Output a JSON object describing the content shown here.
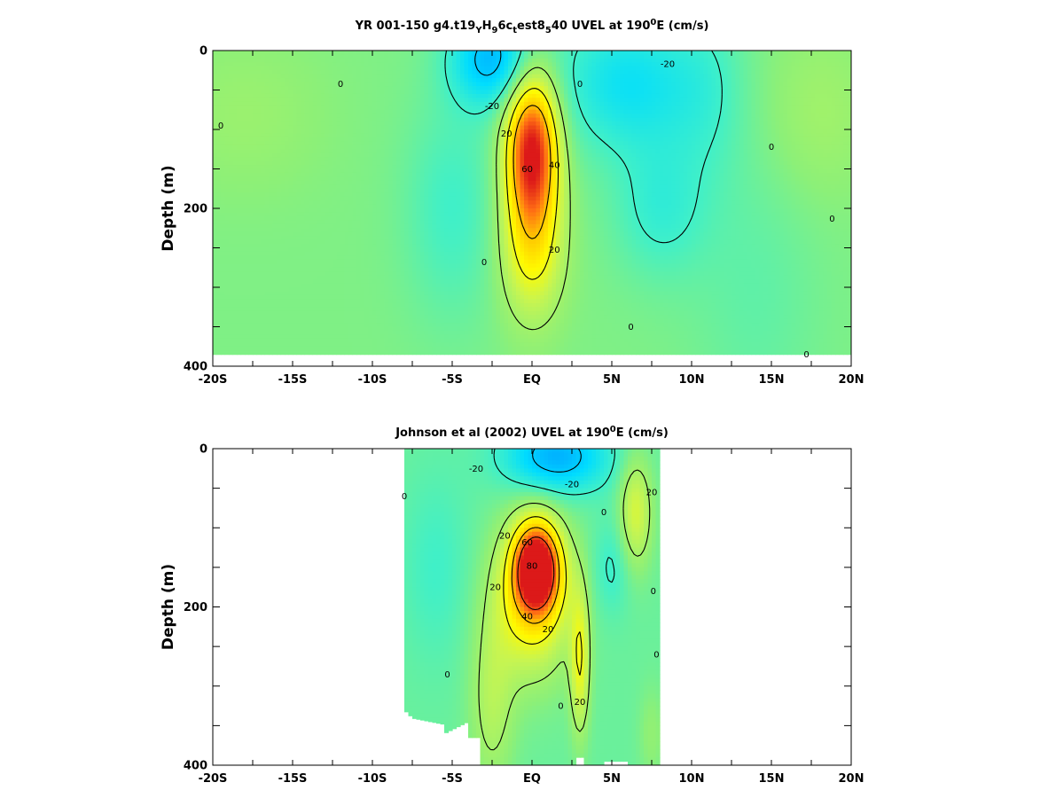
{
  "chart_data": [
    {
      "type": "heatmap",
      "panel": "top",
      "title_parts": [
        "YR 001-150 g4.t19",
        "Y",
        "H",
        "9",
        "6c",
        "t",
        "est8",
        "5",
        "40 UVEL at 190",
        "0",
        "E (cm/s)"
      ],
      "title": "YR 001-150 g4.t19YH96ctest8540 UVEL at 190°E (cm/s)",
      "ylabel": "Depth (m)",
      "xlabel": "",
      "x_ticks": [
        "-20S",
        "-15S",
        "-10S",
        "-5S",
        "EQ",
        "5N",
        "10N",
        "15N",
        "20N"
      ],
      "x_tick_values": [
        -20,
        -15,
        -10,
        -5,
        0,
        5,
        10,
        15,
        20
      ],
      "y_ticks": [
        "0",
        "200",
        "400"
      ],
      "y_tick_values": [
        0,
        200,
        400
      ],
      "xlim": [
        -20,
        20
      ],
      "ylim": [
        400,
        0
      ],
      "data_lat_range": [
        -20,
        20
      ],
      "data_max_depth": 385,
      "colorscale": {
        "vmin": -30,
        "vmax": 90
      },
      "contour_levels": [
        -20,
        0,
        20,
        40,
        60
      ],
      "features": [
        {
          "name": "EUC core",
          "lat": 0.0,
          "depth": 130,
          "value": 88
        },
        {
          "name": "westward surface flow",
          "lat": -2.5,
          "depth": 20,
          "value": -26
        },
        {
          "name": "westward surface flow north",
          "lat": 5.5,
          "depth": 30,
          "value": -18
        },
        {
          "name": "southern eastward cell",
          "lat": -18,
          "depth": 90,
          "value": 8
        },
        {
          "name": "northern eastward cell",
          "lat": 18,
          "depth": 90,
          "value": 9
        }
      ],
      "contour_labels": [
        {
          "text": "-20",
          "lat": -2.5,
          "depth": 70
        },
        {
          "text": "-20",
          "lat": 8.5,
          "depth": 17
        },
        {
          "text": "0",
          "lat": -19.5,
          "depth": 95
        },
        {
          "text": "0",
          "lat": -12,
          "depth": 42
        },
        {
          "text": "0",
          "lat": 3.0,
          "depth": 42
        },
        {
          "text": "0",
          "lat": -3.0,
          "depth": 268
        },
        {
          "text": "0",
          "lat": 6.2,
          "depth": 350
        },
        {
          "text": "0",
          "lat": 15.0,
          "depth": 122
        },
        {
          "text": "0",
          "lat": 18.8,
          "depth": 213
        },
        {
          "text": "0",
          "lat": 17.2,
          "depth": 385
        },
        {
          "text": "20",
          "lat": -1.6,
          "depth": 105
        },
        {
          "text": "20",
          "lat": 1.4,
          "depth": 252
        },
        {
          "text": "40",
          "lat": 1.4,
          "depth": 145
        },
        {
          "text": "60",
          "lat": -0.3,
          "depth": 150
        }
      ]
    },
    {
      "type": "heatmap",
      "panel": "bottom",
      "title_parts": [
        "Johnson et al (2002) UVEL at 190",
        "0",
        "E (cm/s)"
      ],
      "title": "Johnson et al (2002) UVEL at 190°E (cm/s)",
      "ylabel": "Depth (m)",
      "xlabel": "",
      "x_ticks": [
        "-20S",
        "-15S",
        "-10S",
        "-5S",
        "EQ",
        "5N",
        "10N",
        "15N",
        "20N"
      ],
      "x_tick_values": [
        -20,
        -15,
        -10,
        -5,
        0,
        5,
        10,
        15,
        20
      ],
      "y_ticks": [
        "0",
        "200",
        "400"
      ],
      "y_tick_values": [
        0,
        200,
        400
      ],
      "xlim": [
        -20,
        20
      ],
      "ylim": [
        400,
        0
      ],
      "data_lat_range": [
        -8,
        8
      ],
      "colorscale": {
        "vmin": -30,
        "vmax": 90
      },
      "contour_levels": [
        -20,
        0,
        20,
        40,
        60,
        80
      ],
      "features": [
        {
          "name": "EUC core",
          "lat": 0.3,
          "depth": 150,
          "value": 90
        },
        {
          "name": "westward surface flow",
          "lat": 1.5,
          "depth": 15,
          "value": -28
        },
        {
          "name": "eastward cell near 6N",
          "lat": 6.5,
          "depth": 80,
          "value": 28
        },
        {
          "name": "subsurface eastward jet near 3N",
          "lat": 3.0,
          "depth": 280,
          "value": 32
        },
        {
          "name": "southern subsurface jet",
          "lat": -2.5,
          "depth": 300,
          "value": 24
        }
      ],
      "contour_labels": [
        {
          "text": "-20",
          "lat": -3.5,
          "depth": 25
        },
        {
          "text": "-20",
          "lat": 2.5,
          "depth": 45
        },
        {
          "text": "0",
          "lat": -8,
          "depth": 60
        },
        {
          "text": "0",
          "lat": 4.5,
          "depth": 80
        },
        {
          "text": "0",
          "lat": -5.3,
          "depth": 285
        },
        {
          "text": "0",
          "lat": 1.8,
          "depth": 325
        },
        {
          "text": "0",
          "lat": 7.6,
          "depth": 180
        },
        {
          "text": "0",
          "lat": 7.8,
          "depth": 260
        },
        {
          "text": "20",
          "lat": -1.7,
          "depth": 110
        },
        {
          "text": "20",
          "lat": -2.3,
          "depth": 175
        },
        {
          "text": "20",
          "lat": 1.0,
          "depth": 228
        },
        {
          "text": "20",
          "lat": 3.0,
          "depth": 320
        },
        {
          "text": "20",
          "lat": 7.5,
          "depth": 55
        },
        {
          "text": "40",
          "lat": -0.3,
          "depth": 212
        },
        {
          "text": "60",
          "lat": -0.3,
          "depth": 118
        },
        {
          "text": "80",
          "lat": 0.0,
          "depth": 148
        }
      ]
    }
  ]
}
